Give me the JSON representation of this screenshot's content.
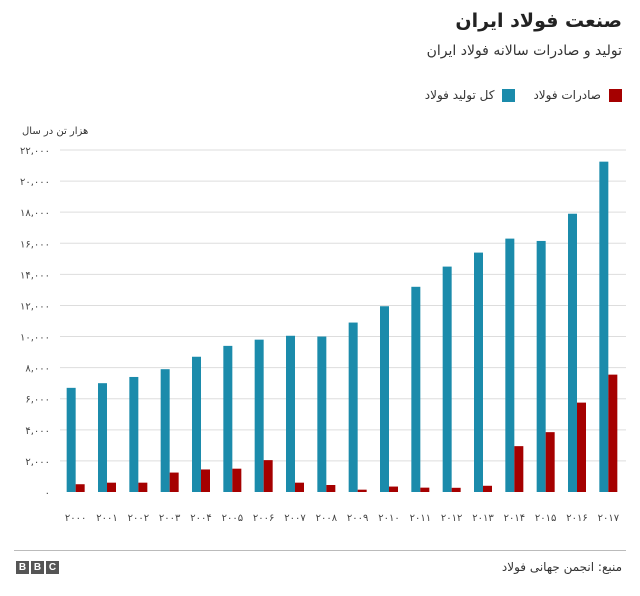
{
  "chart_data": {
    "type": "bar",
    "title": "صنعت فولاد ایران",
    "subtitle": "تولید و صادرات سالانه فولاد ایران",
    "ylabel": "هزار تن در سال",
    "xlabel": "",
    "ylim": [
      0,
      22000
    ],
    "yticks": [
      0,
      2000,
      4000,
      6000,
      8000,
      10000,
      12000,
      14000,
      16000,
      18000,
      20000,
      22000
    ],
    "ytick_labels": [
      "۰",
      "۲,۰۰۰",
      "۴,۰۰۰",
      "۶,۰۰۰",
      "۸,۰۰۰",
      "۱۰,۰۰۰",
      "۱۲,۰۰۰",
      "۱۴,۰۰۰",
      "۱۶,۰۰۰",
      "۱۸,۰۰۰",
      "۲۰,۰۰۰",
      "۲۲,۰۰۰"
    ],
    "grid": true,
    "legend_position": "top-right",
    "categories": [
      "۲۰۰۰",
      "۲۰۰۱",
      "۲۰۰۲",
      "۲۰۰۳",
      "۲۰۰۴",
      "۲۰۰۵",
      "۲۰۰۶",
      "۲۰۰۷",
      "۲۰۰۸",
      "۲۰۰۹",
      "۲۰۱۰",
      "۲۰۱۱",
      "۲۰۱۲",
      "۲۰۱۳",
      "۲۰۱۴",
      "۲۰۱۵",
      "۲۰۱۶",
      "۲۰۱۷"
    ],
    "series": [
      {
        "name": "کل تولید فولاد",
        "color": "#1b8bab",
        "values": [
          6700,
          7000,
          7400,
          7900,
          8700,
          9400,
          9800,
          10050,
          10000,
          10900,
          11950,
          13200,
          14500,
          15400,
          16300,
          16150,
          17900,
          21250
        ]
      },
      {
        "name": "صادرات فولاد",
        "color": "#a50000",
        "values": [
          500,
          600,
          600,
          1250,
          1450,
          1500,
          2050,
          600,
          450,
          150,
          350,
          280,
          270,
          400,
          2950,
          3850,
          5750,
          7550
        ]
      }
    ]
  },
  "source": "منبع: انجمن جهانی فولاد",
  "logo": [
    "B",
    "B",
    "C"
  ]
}
